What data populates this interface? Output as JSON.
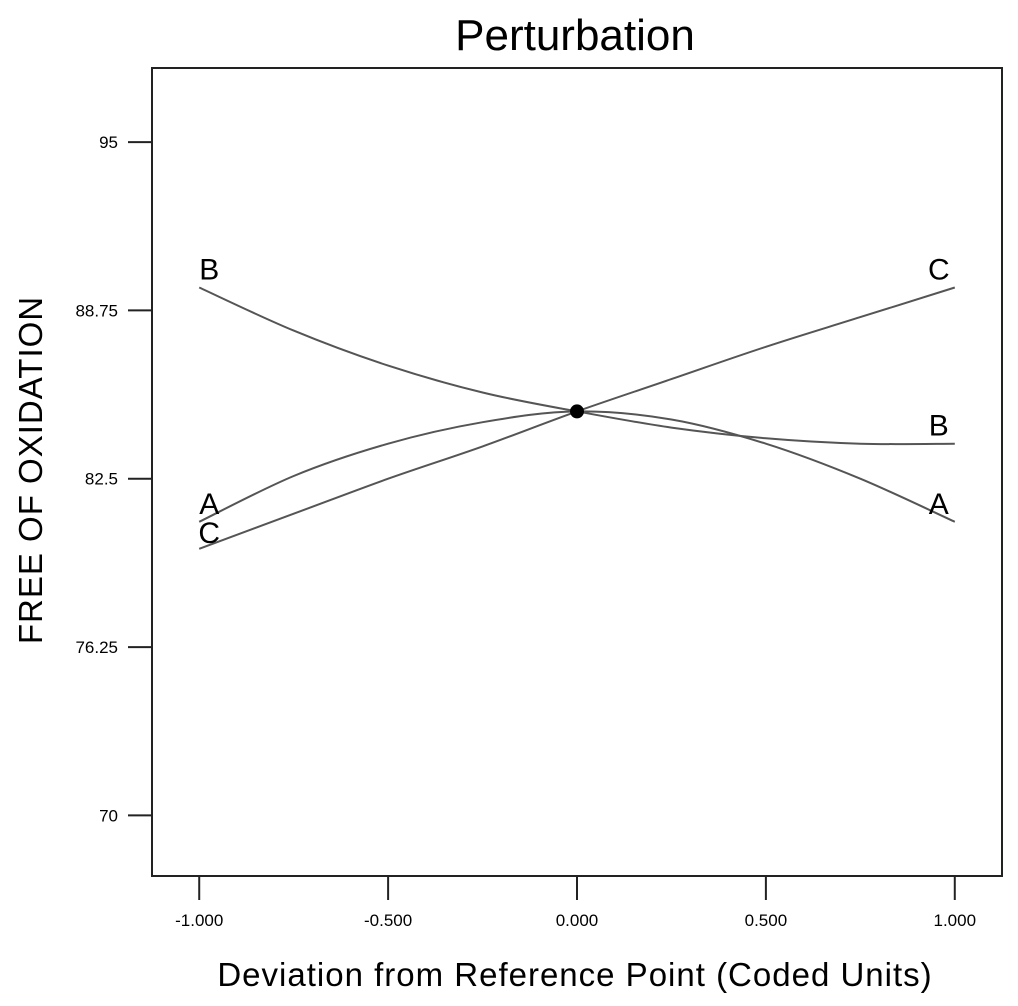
{
  "chart_data": {
    "type": "line",
    "title": "Perturbation",
    "xlabel": "Deviation from Reference Point (Coded Units)",
    "ylabel": "FREE OF OXIDATION",
    "xlim": [
      -1.125,
      1.125
    ],
    "ylim": [
      67.75,
      97.75
    ],
    "x_ticks": [
      "-1.000",
      "-0.500",
      "0.000",
      "0.500",
      "1.000"
    ],
    "y_ticks": [
      "70",
      "76.25",
      "82.5",
      "88.75",
      "95"
    ],
    "reference_point": {
      "x": 0.0,
      "y": 85.0
    },
    "series": [
      {
        "name": "A",
        "x": [
          -1.0,
          -0.75,
          -0.5,
          -0.25,
          0.0,
          0.25,
          0.5,
          0.75,
          1.0
        ],
        "values": [
          80.9,
          82.6,
          83.8,
          84.6,
          85.0,
          84.7,
          83.8,
          82.5,
          80.9
        ]
      },
      {
        "name": "B",
        "x": [
          -1.0,
          -0.75,
          -0.5,
          -0.25,
          0.0,
          0.25,
          0.5,
          0.75,
          1.0
        ],
        "values": [
          89.6,
          88.0,
          86.7,
          85.7,
          85.0,
          84.4,
          84.0,
          83.8,
          83.8
        ]
      },
      {
        "name": "C",
        "x": [
          -1.0,
          -0.75,
          -0.5,
          -0.25,
          0.0,
          0.25,
          0.5,
          0.75,
          1.0
        ],
        "values": [
          79.9,
          81.2,
          82.5,
          83.7,
          85.0,
          86.2,
          87.4,
          88.5,
          89.6
        ]
      }
    ],
    "grid": false,
    "legend": "none"
  }
}
